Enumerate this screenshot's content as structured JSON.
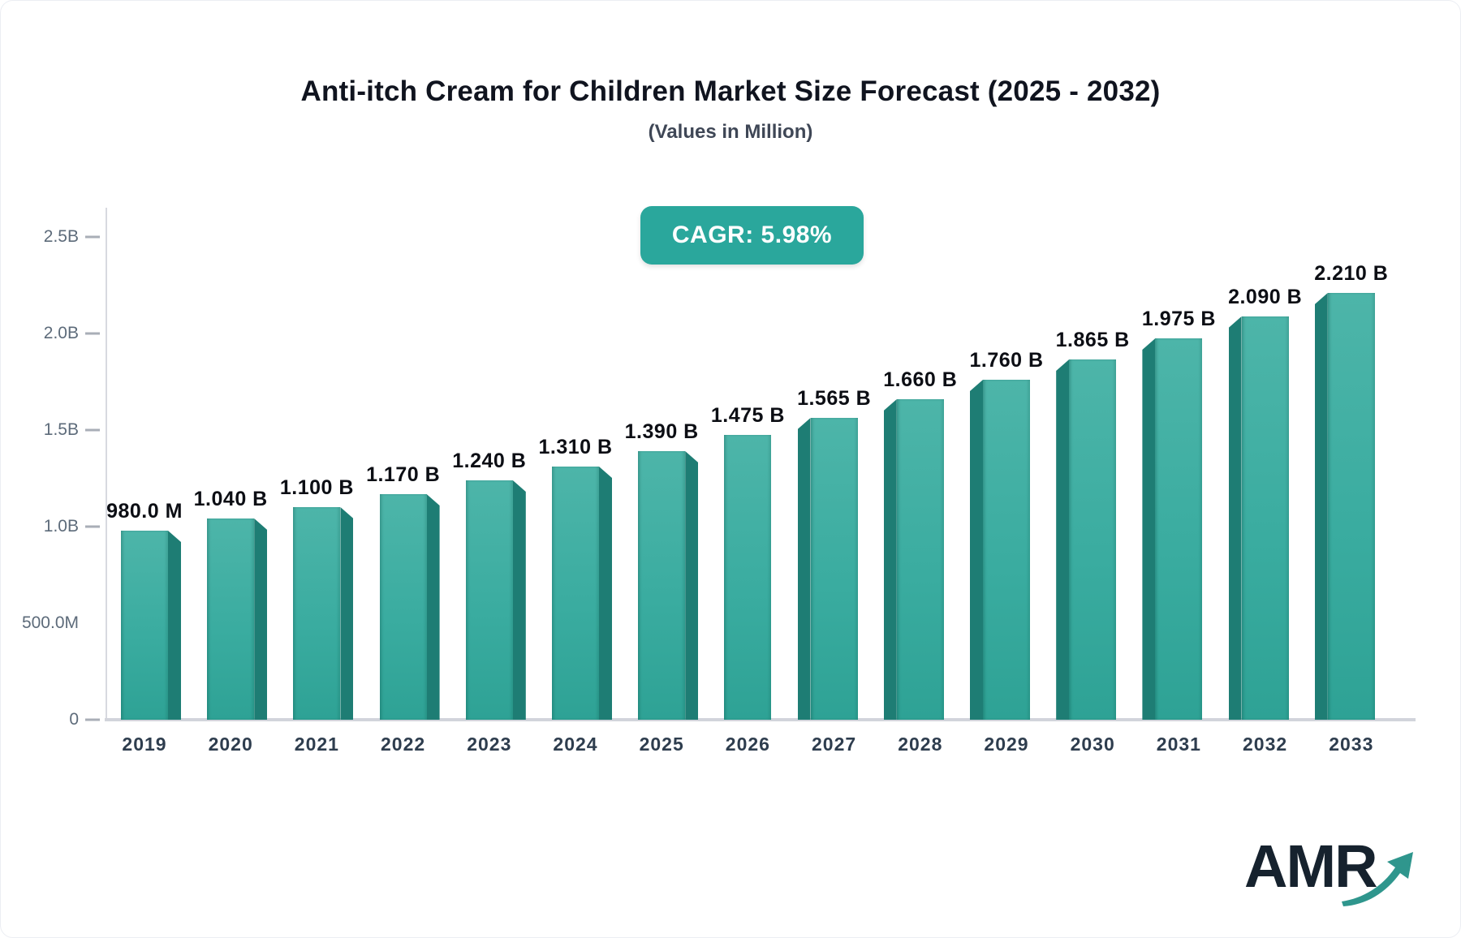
{
  "page": {
    "title": "Anti-itch Cream for Children Market Size Forecast (2025 - 2032)",
    "subtitle": "(Values in Million)",
    "cagr_badge": "CAGR: 5.98%",
    "logo_text": "AMR"
  },
  "colors": {
    "bar_front_top": "#4db5a9",
    "bar_front_bottom": "#2ea295",
    "bar_side": "#1e7d74",
    "badge_bg": "#2aa79c",
    "axis_line": "#d7d9e0",
    "baseline": "#d2d4db",
    "tick_dash": "#a9aeb7",
    "y_label_color": "#5d6b7a",
    "x_label_color": "#2e3d4e",
    "value_label_color": "#0c0e14",
    "logo_text_color": "#16222e",
    "logo_arrow_color": "#2f968d"
  },
  "chart_data": {
    "type": "bar",
    "title": "Anti-itch Cream for Children Market Size Forecast (2025 - 2032)",
    "subtitle": "(Values in Million)",
    "cagr": "5.98%",
    "categories": [
      "2019",
      "2020",
      "2021",
      "2022",
      "2023",
      "2024",
      "2025",
      "2026",
      "2027",
      "2028",
      "2029",
      "2030",
      "2031",
      "2032",
      "2033"
    ],
    "values_billions": [
      0.98,
      1.04,
      1.1,
      1.17,
      1.24,
      1.31,
      1.39,
      1.475,
      1.565,
      1.66,
      1.76,
      1.865,
      1.975,
      2.09,
      2.21
    ],
    "value_labels": [
      "980.0 M",
      "1.040 B",
      "1.100 B",
      "1.170 B",
      "1.240 B",
      "1.310 B",
      "1.390 B",
      "1.475 B",
      "1.565 B",
      "1.660 B",
      "1.760 B",
      "1.865 B",
      "1.975 B",
      "2.090 B",
      "2.210 B"
    ],
    "ylim": [
      0,
      2.5
    ],
    "yticks": [
      {
        "value": 0.0,
        "label": "0",
        "dash": true
      },
      {
        "value": 0.5,
        "label": "500.0M",
        "dash": false
      },
      {
        "value": 1.0,
        "label": "1.0B",
        "dash": true
      },
      {
        "value": 1.5,
        "label": "1.5B",
        "dash": true
      },
      {
        "value": 2.0,
        "label": "2.0B",
        "dash": true
      },
      {
        "value": 2.5,
        "label": "2.5B",
        "dash": true
      }
    ],
    "grid": false,
    "legend": "none",
    "bar_style": "3d-beveled, perspective toward center (side face on right for 2019-2025, flat for 2026, side face on left for 2027-2033)"
  }
}
